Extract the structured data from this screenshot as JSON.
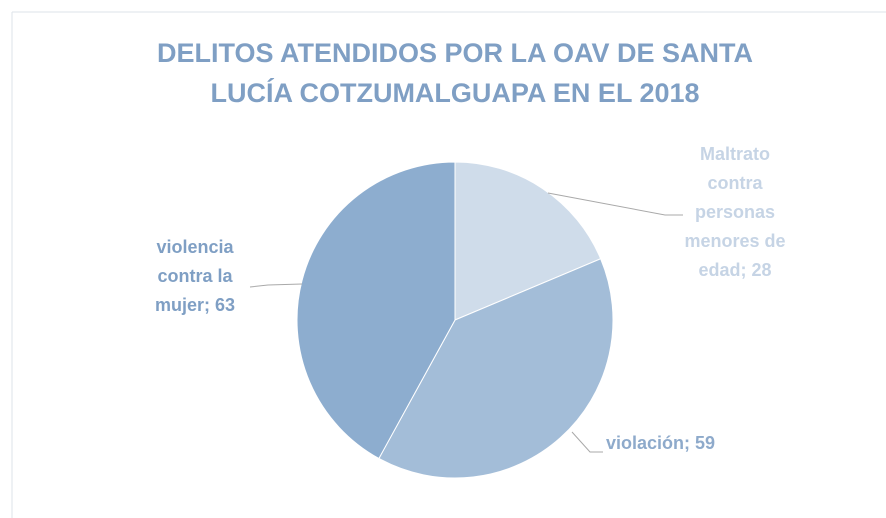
{
  "chart_data": {
    "type": "pie",
    "title": "DELITOS ATENDIDOS POR LA OAV DE SANTA LUCÍA COTZUMALGUAPA  EN EL 2018",
    "categories": [
      "Maltrato contra personas menores de edad",
      "violación",
      "violencia contra la mujer"
    ],
    "values": [
      28,
      59,
      63
    ],
    "value_labels": [
      "Maltrato contra personas menores de edad; 28",
      "violación; 59",
      "violencia contra la mujer; 63"
    ],
    "colors": [
      "#cfdcea",
      "#a3bdd8",
      "#8dadcf"
    ]
  }
}
